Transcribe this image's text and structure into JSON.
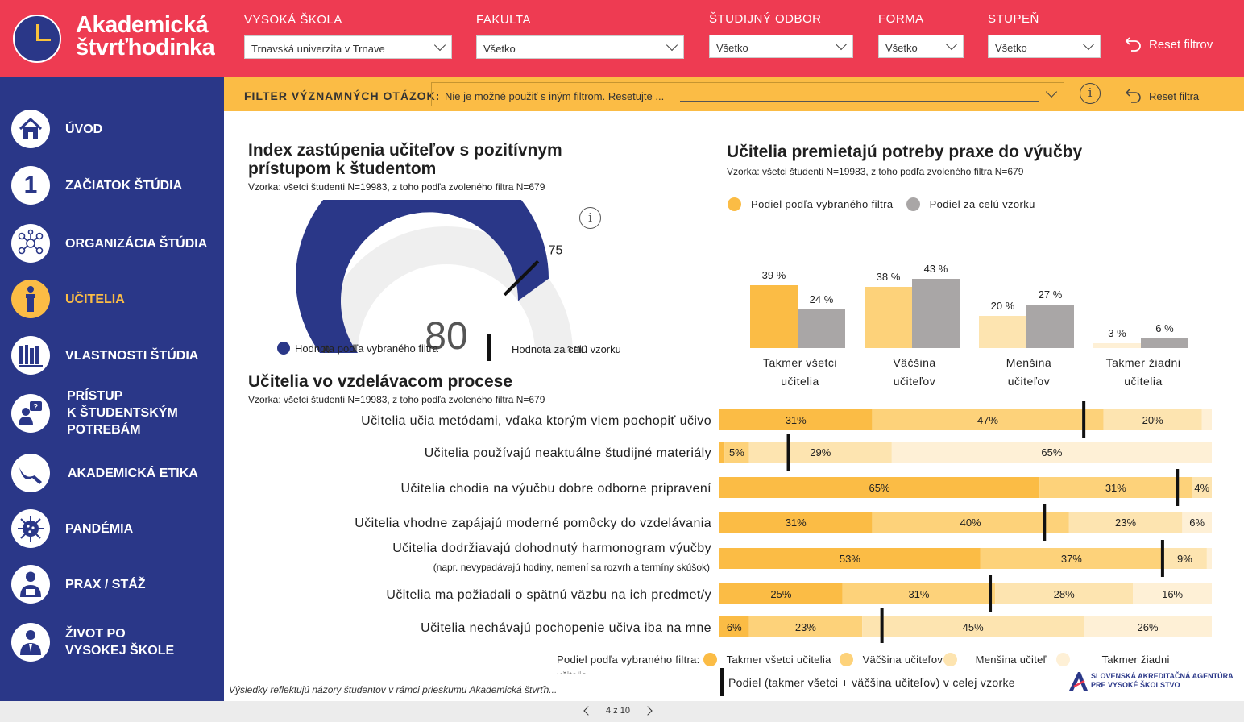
{
  "header": {
    "logo_line1": "Akademická",
    "logo_line2": "štvrťhodinka",
    "filters": [
      {
        "label": "VYSOKÁ ŠKOLA",
        "value": "Trnavská univerzita v Trnave"
      },
      {
        "label": "FAKULTA",
        "value": "Všetko"
      },
      {
        "label": "ŠTUDIJNÝ ODBOR",
        "value": "Všetko"
      },
      {
        "label": "FORMA",
        "value": "Všetko"
      },
      {
        "label": "STUPEŇ",
        "value": "Všetko"
      }
    ],
    "reset_label": "Reset filtrov"
  },
  "question_filter": {
    "label": "FILTER VÝZNAMNÝCH OTÁZOK:",
    "value": "Nie je možné použiť s iným filtrom. Resetujte ...",
    "info_icon": "i",
    "reset_label": "Reset filtra"
  },
  "sidebar": {
    "items": [
      {
        "label": "ÚVOD",
        "icon": "home-icon"
      },
      {
        "label": "ZAČIATOK ŠTÚDIA",
        "icon": "number-one-icon",
        "glyph": "1"
      },
      {
        "label": "ORGANIZÁCIA ŠTÚDIA",
        "icon": "network-icon"
      },
      {
        "label": "UČITELIA",
        "icon": "teacher-icon",
        "active": true
      },
      {
        "label": "VLASTNOSTI ŠTÚDIA",
        "icon": "books-icon"
      },
      {
        "label": "PRÍSTUP K ŠTUDENTSKÝM POTREBÁM",
        "line1": "PRÍSTUP",
        "line2": "K ŠTUDENTSKÝM",
        "line3": "POTREBÁM",
        "icon": "help-person-icon"
      },
      {
        "label": "AKADEMICKÁ ETIKA",
        "icon": "ethics-icon"
      },
      {
        "label": "PANDÉMIA",
        "icon": "virus-icon"
      },
      {
        "label": "PRAX / STÁŽ",
        "icon": "worker-icon"
      },
      {
        "label": "ŽIVOT PO VYSOKEJ ŠKOLE",
        "line1": "ŽIVOT PO",
        "line2": "VYSOKEJ ŠKOLE",
        "icon": "graduate-icon"
      }
    ]
  },
  "gauge": {
    "title_line1": "Index zastúpenia učiteľov s pozitívnym",
    "title_line2": "prístupom k študentom",
    "subtitle": "Vzorka: všetci študenti N=19983, z toho podľa zvoleného filtra N=679",
    "value": 80,
    "target": 75,
    "min": 0,
    "max": 100,
    "legend_filter": "Hodnota podľa vybraného filtra",
    "legend_all": "Hodnota za celú vzorku",
    "color_filter": "#2a3788",
    "color_rest": "#efefef"
  },
  "practice": {
    "title": "Učitelia premietajú potreby praxe do výučby",
    "subtitle": "Vzorka: všetci študenti N=19983, z toho podľa zvoleného filtra N=679",
    "legend_filter": "Podiel podľa vybraného filtra",
    "legend_all": "Podiel za celú vzorku"
  },
  "chart_data": [
    {
      "type": "gauge",
      "value": 80,
      "reference": 75,
      "range": [
        0,
        100
      ]
    },
    {
      "type": "bar",
      "categories": [
        [
          "Takmer všetci",
          "učitelia"
        ],
        [
          "Väčšina",
          "učiteľov"
        ],
        [
          "Menšina",
          "učiteľov"
        ],
        [
          "Takmer žiadni",
          "učitelia"
        ]
      ],
      "series": [
        {
          "name": "Podiel podľa vybraného filtra",
          "values": [
            39,
            38,
            20,
            3
          ],
          "labels": [
            "39 %",
            "38 %",
            "20 %",
            "3 %"
          ],
          "colors": [
            "#fbbc45",
            "#fdd27a",
            "#fde4b0",
            "#fef0d6"
          ]
        },
        {
          "name": "Podiel za celú vzorku",
          "values": [
            24,
            43,
            27,
            6
          ],
          "labels": [
            "24 %",
            "43 %",
            "27 %",
            "6 %"
          ],
          "color": "#a9a6a6"
        }
      ]
    },
    {
      "type": "bar",
      "stacked": true,
      "orientation": "horizontal",
      "rows": [
        {
          "label": "Učitelia učia metódami, vďaka ktorým viem pochopiť učivo",
          "values": [
            31,
            47,
            20,
            2
          ],
          "labels": [
            "31%",
            "47%",
            "20%",
            ""
          ],
          "marker": 74
        },
        {
          "label": "Učitelia používajú neaktuálne študijné materiály",
          "values": [
            1,
            5,
            29,
            65
          ],
          "labels": [
            "",
            "5%",
            "29%",
            "65%"
          ],
          "marker": 14
        },
        {
          "label": "Učitelia chodia na výučbu dobre odborne pripravení",
          "values": [
            65,
            31,
            4,
            0
          ],
          "labels": [
            "65%",
            "31%",
            "4%",
            ""
          ],
          "marker": 93
        },
        {
          "label": "Učitelia vhodne zapájajú moderné pomôcky do vzdelávania",
          "values": [
            31,
            40,
            23,
            6
          ],
          "labels": [
            "31%",
            "40%",
            "23%",
            "6%"
          ],
          "marker": 66
        },
        {
          "label": "Učitelia dodržiavajú dohodnutý harmonogram výučby",
          "sublabel": "(napr. nevypadávajú hodiny, nemení sa rozvrh a termíny skúšok)",
          "values": [
            53,
            37,
            9,
            1
          ],
          "labels": [
            "53%",
            "37%",
            "9%",
            ""
          ],
          "marker": 90
        },
        {
          "label": "Učitelia ma požiadali o spätnú väzbu na ich predmet/y",
          "values": [
            25,
            31,
            28,
            16
          ],
          "labels": [
            "25%",
            "31%",
            "28%",
            "16%"
          ],
          "marker": 55
        },
        {
          "label": "Učitelia nechávajú pochopenie učiva iba na mne",
          "values": [
            6,
            23,
            45,
            26
          ],
          "labels": [
            "6%",
            "23%",
            "45%",
            "26%"
          ],
          "marker": 33
        }
      ],
      "colors": [
        "#fbbc45",
        "#fdd27a",
        "#fde4b0",
        "#fef0d6"
      ]
    }
  ],
  "process": {
    "title": "Učitelia vo vzdelávacom procese",
    "subtitle": "Vzorka: všetci študenti N=19983, z toho podľa zvoleného filtra N=679",
    "legend_prefix": "Podiel podľa vybraného filtra:",
    "legend_items": [
      "Takmer všetci učitelia",
      "Väčšina učiteľov",
      "Menšina učiteľ",
      "Takmer žiadni"
    ],
    "legend_overflow": "učitelia",
    "legend_marker": "Podiel (takmer všetci + väčšina učiteľov) v celej vzorke"
  },
  "footnote": "Výsledky reflektujú názory študentov v rámci prieskumu Akademická štvrťh...",
  "agency": {
    "line1": "SLOVENSKÁ AKREDITAČNÁ AGENTÚRA",
    "line2": "PRE VYSOKÉ ŠKOLSTVO"
  },
  "pager": {
    "label": "4 z 10"
  }
}
